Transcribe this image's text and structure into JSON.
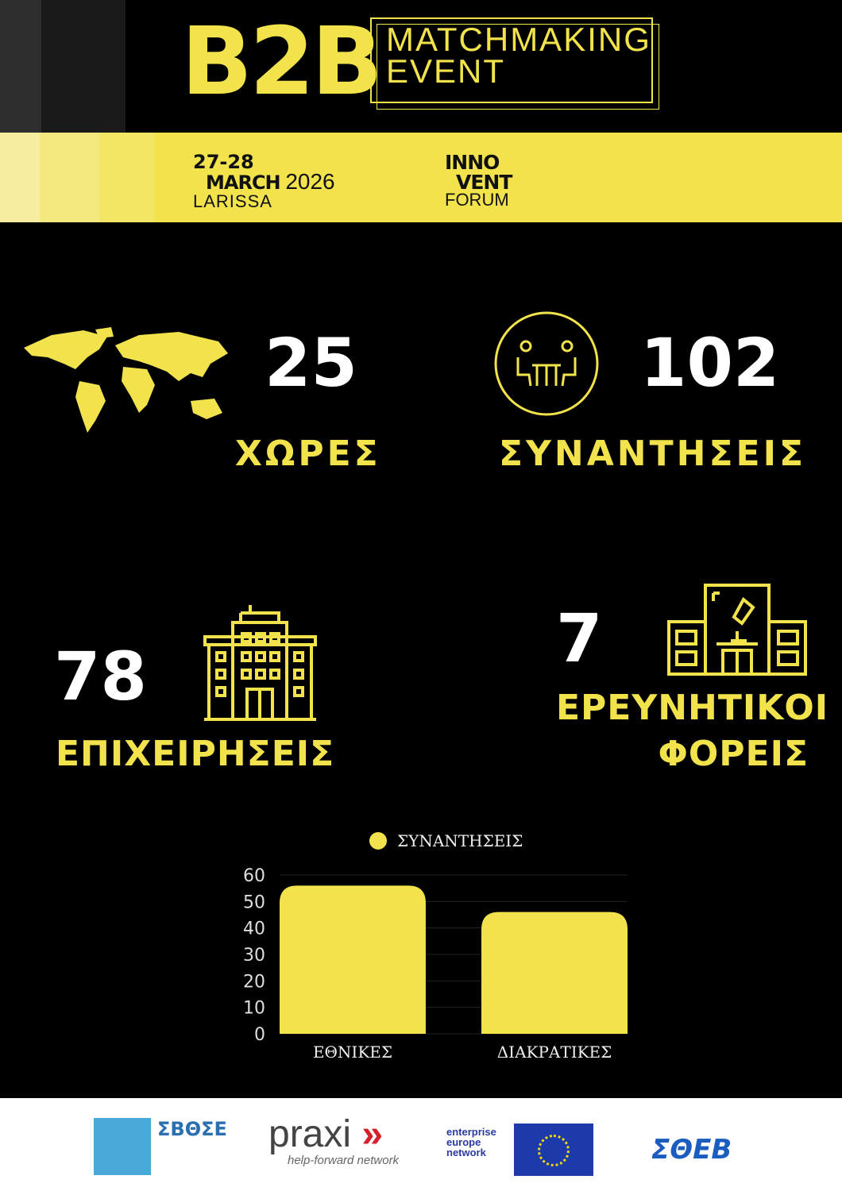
{
  "header": {
    "logo_b2b": "B2B",
    "event_title_line1": "MATCHMAKING",
    "event_title_line2": "EVENT"
  },
  "band": {
    "dates": "27-28",
    "month": "MARCH",
    "year": "2026",
    "city": "LARISSA",
    "forum_line1": "INNO",
    "forum_line2": "VENT",
    "forum_line3": "FORUM"
  },
  "stats": [
    {
      "value": "25",
      "label": "ΧΩΡΕΣ",
      "icon": "world-map-icon"
    },
    {
      "value": "102",
      "label": "ΣΥΝΑΝΤΗΣΕΙΣ",
      "icon": "meeting-icon"
    },
    {
      "value": "78",
      "label": "ΕΠΙΧΕΙΡΗΣΕΙΣ",
      "icon": "office-building-icon"
    },
    {
      "value": "7",
      "label_line1": "ΕΡΕΥΝΗΤΙΚΟΙ",
      "label_line2": "ΦΟΡΕΙΣ",
      "icon": "research-lab-icon"
    }
  ],
  "colors": {
    "accent": "#f2e34c",
    "background": "#000000"
  },
  "chart_data": {
    "type": "bar",
    "categories": [
      "ΕΘΝΙΚΕΣ",
      "ΔΙΑΚΡΑΤΙΚΕΣ"
    ],
    "series": [
      {
        "name": "ΣΥΝΑΝΤΗΣΕΙΣ",
        "values": [
          56,
          46
        ],
        "color": "#f2e34c"
      }
    ],
    "yticks": [
      "0",
      "10",
      "20",
      "30",
      "40",
      "50",
      "60"
    ],
    "ylim": [
      0,
      60
    ],
    "grid": true,
    "legend": "top"
  },
  "footer": {
    "logos": [
      "ΣΒΘΣΕ",
      "praxi",
      "help-forward network",
      "enterprise europe network",
      "ΣΘΕΒ"
    ]
  }
}
